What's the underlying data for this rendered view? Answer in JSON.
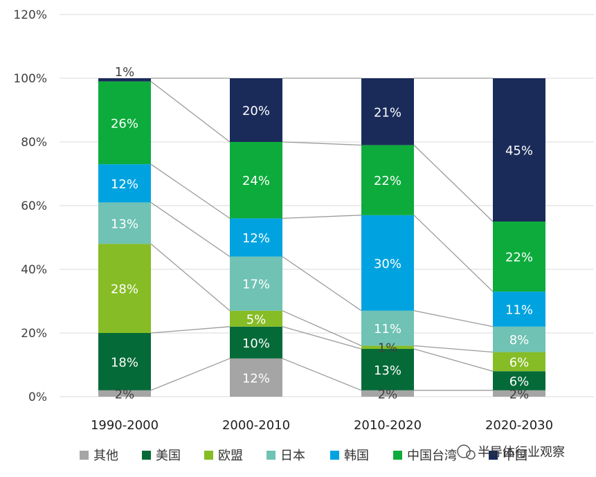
{
  "chart_data": {
    "type": "bar",
    "stacked": true,
    "categories": [
      "1990-2000",
      "2000-2010",
      "2010-2020",
      "2020-2030"
    ],
    "ylim": [
      0,
      120
    ],
    "yticks": [
      "0%",
      "20%",
      "40%",
      "60%",
      "80%",
      "100%",
      "120%"
    ],
    "grid": true,
    "legend_position": "bottom",
    "series": [
      {
        "name": "其他",
        "color": "#a5a5a5",
        "values": [
          2,
          12,
          2,
          2
        ],
        "labels": [
          "2%",
          "12%",
          "2%",
          "2%"
        ]
      },
      {
        "name": "美国",
        "color": "#046a38",
        "values": [
          18,
          10,
          13,
          6
        ],
        "labels": [
          "18%",
          "10%",
          "13%",
          "6%"
        ]
      },
      {
        "name": "欧盟",
        "color": "#86bc25",
        "values": [
          28,
          5,
          1,
          6
        ],
        "labels": [
          "28%",
          "5%",
          "1%",
          "6%"
        ]
      },
      {
        "name": "日本",
        "color": "#6fc2b4",
        "values": [
          13,
          17,
          11,
          8
        ],
        "labels": [
          "13%",
          "17%",
          "11%",
          "8%"
        ]
      },
      {
        "name": "韩国",
        "color": "#00a3e0",
        "values": [
          12,
          12,
          30,
          11
        ],
        "labels": [
          "12%",
          "12%",
          "30%",
          "11%"
        ]
      },
      {
        "name": "中国台湾",
        "color": "#0dab3c",
        "values": [
          26,
          24,
          22,
          22
        ],
        "labels": [
          "26%",
          "24%",
          "22%",
          "22%"
        ]
      },
      {
        "name": "中国",
        "color": "#1a2b5a",
        "values": [
          1,
          20,
          21,
          45
        ],
        "labels": [
          "1%",
          "20%",
          "21%",
          "45%"
        ]
      }
    ]
  },
  "watermark": "半导体行业观察"
}
